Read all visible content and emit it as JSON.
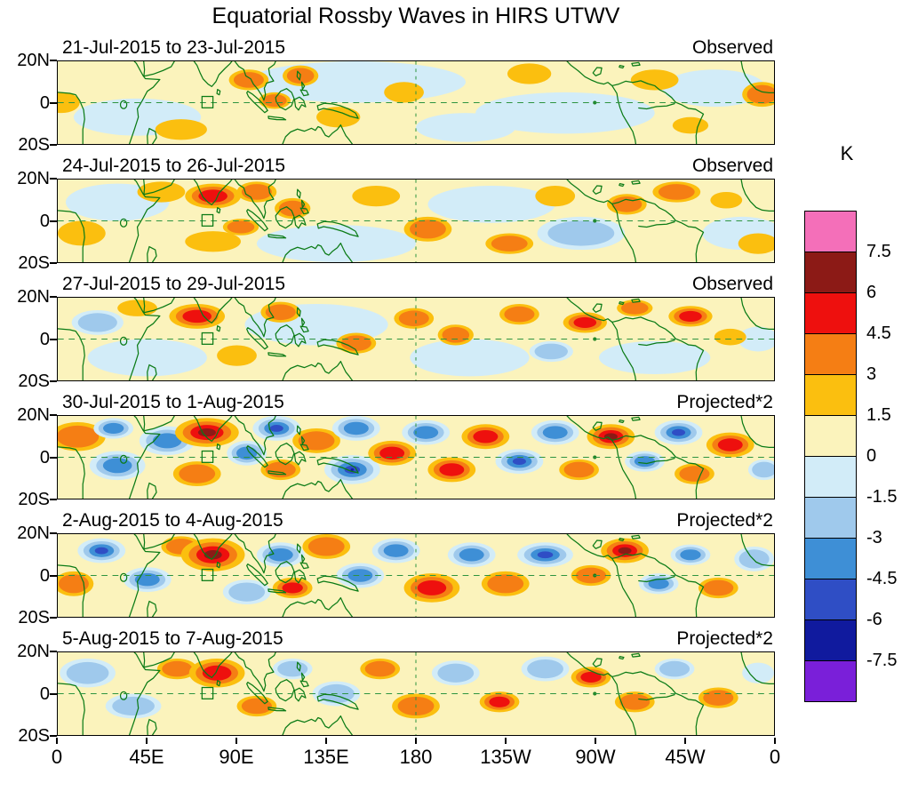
{
  "title": "Equatorial Rossby Waves in HIRS UTWV",
  "chart_data": {
    "type": "heatmap",
    "title": "Equatorial Rossby Waves in HIRS UTWV",
    "unit": "K",
    "contour_levels": [
      -7.5,
      -6,
      -4.5,
      -3,
      -1.5,
      0,
      1.5,
      3,
      4.5,
      6,
      7.5
    ],
    "x_tick_labels": [
      "0",
      "45E",
      "90E",
      "135E",
      "180",
      "135W",
      "90W",
      "45W",
      "0"
    ],
    "y_tick_labels": [
      "20N",
      "0",
      "20S"
    ],
    "lon_range_deg_east": [
      0,
      360
    ],
    "lat_range_deg": [
      20,
      -20
    ],
    "colorbar": {
      "unit_label": "K",
      "tick_labels": [
        "7.5",
        "6",
        "4.5",
        "3",
        "1.5",
        "0",
        "-1.5",
        "-3",
        "-4.5",
        "-6",
        "-7.5"
      ],
      "colors_top_to_bottom": [
        "#F46FB9",
        "#8C1A16",
        "#EE100E",
        "#F57E14",
        "#FBBF0F",
        "#FBF3BC",
        "#D2ECF8",
        "#9FC9EC",
        "#3E8FD6",
        "#2F4EC5",
        "#101A9E",
        "#7A1FD9"
      ]
    },
    "map_colors": {
      "background": "#FBF3BC",
      "coastline": "#0B7B16",
      "grid": "#2E9440",
      "frame": "#000000"
    },
    "level_colors": {
      "1": "#FBBF0F",
      "2": "#F57E14",
      "3": "#EE100E",
      "4": "#8C1A16",
      "5": "#F46FB9",
      "-1": "#D2ECF8",
      "-2": "#9FC9EC",
      "-3": "#3E8FD6",
      "-4": "#2F4EC5",
      "-5": "#101A9E"
    },
    "blob_format": "[x_map_units_0to360, y_map_units_0to40_top_is_20N, rx, ry, anomaly_level_index]",
    "panels": [
      {
        "date_label": "21-Jul-2015 to 23-Jul-2015",
        "source_label": "Observed",
        "blobs": [
          [
            40,
            27,
            32,
            9,
            -1
          ],
          [
            150,
            10,
            55,
            10,
            -1
          ],
          [
            255,
            25,
            45,
            10,
            -1
          ],
          [
            205,
            32,
            25,
            7,
            -1
          ],
          [
            330,
            13,
            26,
            9,
            -1
          ],
          [
            2,
            20,
            9,
            5,
            1
          ],
          [
            62,
            33,
            13,
            5,
            1
          ],
          [
            96,
            9,
            10,
            5,
            2
          ],
          [
            109,
            19,
            8,
            4,
            2
          ],
          [
            122,
            7,
            9,
            5,
            2
          ],
          [
            141,
            27,
            11,
            5,
            1
          ],
          [
            174,
            15,
            10,
            5,
            1
          ],
          [
            237,
            6,
            11,
            5,
            1
          ],
          [
            300,
            9,
            12,
            5,
            1
          ],
          [
            318,
            31,
            9,
            4,
            1
          ],
          [
            354,
            16,
            10,
            6,
            2
          ]
        ]
      },
      {
        "date_label": "24-Jul-2015 to 26-Jul-2015",
        "source_label": "Observed",
        "blobs": [
          [
            30,
            11,
            26,
            9,
            -1
          ],
          [
            140,
            31,
            40,
            9,
            -1
          ],
          [
            218,
            12,
            32,
            9,
            -1
          ],
          [
            263,
            26,
            22,
            8,
            -2
          ],
          [
            344,
            26,
            20,
            8,
            -1
          ],
          [
            12,
            26,
            12,
            6,
            1
          ],
          [
            52,
            6,
            12,
            5,
            1
          ],
          [
            78,
            8,
            14,
            6,
            3
          ],
          [
            100,
            6,
            10,
            5,
            2
          ],
          [
            92,
            23,
            9,
            4,
            2
          ],
          [
            118,
            14,
            9,
            5,
            2
          ],
          [
            78,
            30,
            14,
            5,
            1
          ],
          [
            160,
            8,
            12,
            5,
            1
          ],
          [
            186,
            24,
            12,
            6,
            2
          ],
          [
            227,
            31,
            12,
            5,
            2
          ],
          [
            250,
            8,
            10,
            5,
            1
          ],
          [
            286,
            12,
            10,
            5,
            2
          ],
          [
            311,
            6,
            12,
            5,
            2
          ],
          [
            336,
            10,
            8,
            4,
            1
          ],
          [
            352,
            31,
            10,
            5,
            1
          ]
        ]
      },
      {
        "date_label": "27-Jul-2015 to 29-Jul-2015",
        "source_label": "Observed",
        "blobs": [
          [
            45,
            29,
            30,
            9,
            -1
          ],
          [
            130,
            13,
            36,
            10,
            -1
          ],
          [
            207,
            29,
            30,
            9,
            -1
          ],
          [
            300,
            29,
            28,
            8,
            -1
          ],
          [
            20,
            12,
            13,
            6,
            -2
          ],
          [
            248,
            26,
            11,
            5,
            -2
          ],
          [
            352,
            20,
            10,
            6,
            -1
          ],
          [
            40,
            5,
            10,
            4,
            1
          ],
          [
            70,
            9,
            14,
            6,
            3
          ],
          [
            90,
            28,
            10,
            5,
            1
          ],
          [
            112,
            7,
            10,
            5,
            2
          ],
          [
            150,
            22,
            10,
            5,
            2
          ],
          [
            179,
            10,
            10,
            5,
            2
          ],
          [
            200,
            18,
            9,
            5,
            2
          ],
          [
            232,
            8,
            10,
            5,
            2
          ],
          [
            265,
            12,
            11,
            5,
            3
          ],
          [
            290,
            5,
            9,
            4,
            2
          ],
          [
            318,
            9,
            11,
            5,
            3
          ],
          [
            338,
            19,
            8,
            4,
            1
          ]
        ]
      },
      {
        "date_label": "30-Jul-2015 to 1-Aug-2015",
        "source_label": "Projected*2",
        "blobs": [
          [
            10,
            10,
            14,
            7,
            2
          ],
          [
            30,
            24,
            14,
            7,
            -3
          ],
          [
            28,
            6,
            10,
            5,
            -3
          ],
          [
            55,
            12,
            14,
            7,
            -3
          ],
          [
            75,
            8,
            16,
            7,
            4
          ],
          [
            70,
            28,
            12,
            6,
            2
          ],
          [
            95,
            18,
            10,
            6,
            -3
          ],
          [
            110,
            6,
            12,
            6,
            -4
          ],
          [
            112,
            26,
            10,
            5,
            2
          ],
          [
            130,
            12,
            12,
            6,
            2
          ],
          [
            148,
            26,
            14,
            7,
            -5
          ],
          [
            150,
            6,
            12,
            6,
            -3
          ],
          [
            168,
            18,
            12,
            6,
            3
          ],
          [
            185,
            8,
            12,
            6,
            -3
          ],
          [
            198,
            26,
            12,
            6,
            3
          ],
          [
            215,
            10,
            12,
            6,
            3
          ],
          [
            232,
            22,
            12,
            6,
            -4
          ],
          [
            250,
            8,
            12,
            6,
            -3
          ],
          [
            262,
            26,
            10,
            5,
            2
          ],
          [
            278,
            10,
            12,
            6,
            4
          ],
          [
            295,
            22,
            10,
            5,
            -3
          ],
          [
            312,
            8,
            12,
            6,
            -4
          ],
          [
            320,
            28,
            10,
            5,
            2
          ],
          [
            338,
            14,
            12,
            6,
            3
          ],
          [
            355,
            26,
            8,
            5,
            -2
          ]
        ]
      },
      {
        "date_label": "2-Aug-2015 to 4-Aug-2015",
        "source_label": "Projected*2",
        "blobs": [
          [
            8,
            24,
            10,
            6,
            2
          ],
          [
            22,
            8,
            12,
            6,
            -4
          ],
          [
            45,
            22,
            12,
            6,
            -3
          ],
          [
            62,
            6,
            10,
            5,
            2
          ],
          [
            78,
            10,
            16,
            8,
            4
          ],
          [
            95,
            28,
            12,
            6,
            -2
          ],
          [
            112,
            10,
            12,
            6,
            -3
          ],
          [
            118,
            26,
            10,
            5,
            3
          ],
          [
            135,
            6,
            12,
            6,
            2
          ],
          [
            152,
            20,
            12,
            6,
            -3
          ],
          [
            170,
            8,
            12,
            6,
            -3
          ],
          [
            188,
            26,
            14,
            7,
            3
          ],
          [
            208,
            10,
            12,
            6,
            -3
          ],
          [
            225,
            24,
            12,
            6,
            2
          ],
          [
            245,
            10,
            14,
            6,
            -4
          ],
          [
            268,
            20,
            10,
            5,
            2
          ],
          [
            285,
            8,
            12,
            6,
            4
          ],
          [
            302,
            24,
            10,
            5,
            -3
          ],
          [
            318,
            10,
            10,
            5,
            -3
          ],
          [
            332,
            26,
            10,
            5,
            2
          ],
          [
            350,
            12,
            10,
            6,
            -2
          ]
        ]
      },
      {
        "date_label": "5-Aug-2015 to 7-Aug-2015",
        "source_label": "Projected*2",
        "blobs": [
          [
            15,
            10,
            14,
            7,
            -2
          ],
          [
            38,
            26,
            14,
            6,
            -2
          ],
          [
            60,
            8,
            10,
            5,
            2
          ],
          [
            80,
            10,
            14,
            7,
            3
          ],
          [
            100,
            26,
            10,
            5,
            2
          ],
          [
            118,
            8,
            10,
            5,
            -2
          ],
          [
            140,
            20,
            12,
            6,
            -2
          ],
          [
            162,
            8,
            10,
            5,
            2
          ],
          [
            180,
            26,
            12,
            6,
            2
          ],
          [
            200,
            10,
            12,
            6,
            -2
          ],
          [
            222,
            24,
            10,
            5,
            3
          ],
          [
            245,
            8,
            12,
            6,
            -2
          ],
          [
            268,
            12,
            10,
            5,
            3
          ],
          [
            290,
            24,
            10,
            5,
            2
          ],
          [
            310,
            8,
            10,
            5,
            -2
          ],
          [
            332,
            22,
            10,
            5,
            2
          ],
          [
            352,
            10,
            8,
            5,
            -1
          ]
        ]
      }
    ]
  }
}
